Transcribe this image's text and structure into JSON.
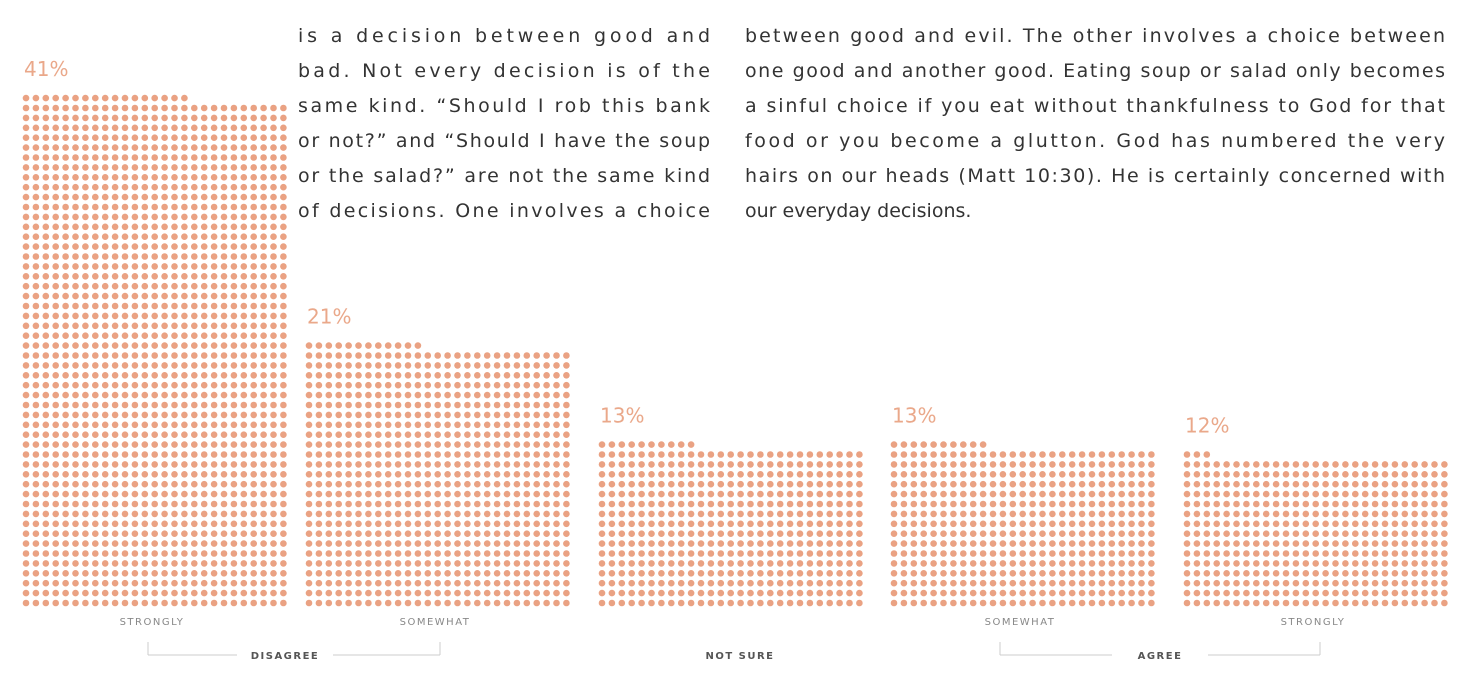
{
  "chart_data": {
    "type": "dotbar",
    "categories": [
      "STRONGLY",
      "SOMEWHAT",
      null,
      "SOMEWHAT",
      "STRONGLY"
    ],
    "values": [
      41,
      21,
      13,
      13,
      12
    ],
    "value_labels": [
      "41%",
      "21%",
      "13%",
      "13%",
      "12%"
    ],
    "groups": [
      "DISAGREE",
      "NOT SURE",
      "AGREE"
    ],
    "color": "#eaa283"
  },
  "text_left": [
    "is a decision between good and",
    "bad. Not every decision is of the",
    "same kind. “Should I rob this bank",
    "or not?” and “Should I have the soup",
    "or the salad?” are not the same kind",
    "of decisions. One involves a choice"
  ],
  "text_right": [
    "between good and evil. The other involves a choice between",
    "one good and another good. Eating soup or salad only becomes",
    "a sinful choice if you eat without thankfulness to God for that",
    "food or you become a glutton. God has numbered the very",
    "hairs on our heads (Matt 10:30). He is certainly concerned with",
    "our everyday decisions."
  ]
}
